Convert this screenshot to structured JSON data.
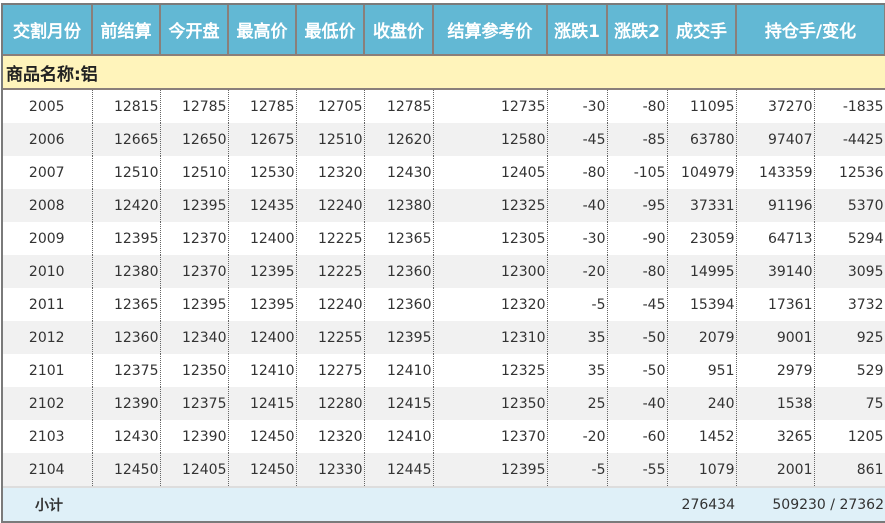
{
  "headers": [
    "交割月份",
    "前结算",
    "今开盘",
    "最高价",
    "最低价",
    "收盘价",
    "结算参考价",
    "涨跌1",
    "涨跌2",
    "成交手",
    "持仓手/变化"
  ],
  "category": "商品名称:铝",
  "rows": [
    [
      "2005",
      "12815",
      "12785",
      "12785",
      "12705",
      "12785",
      "12735",
      "-30",
      "-80",
      "11095",
      "37270",
      "-1835"
    ],
    [
      "2006",
      "12665",
      "12650",
      "12675",
      "12510",
      "12620",
      "12580",
      "-45",
      "-85",
      "63780",
      "97407",
      "-4425"
    ],
    [
      "2007",
      "12510",
      "12510",
      "12530",
      "12320",
      "12430",
      "12405",
      "-80",
      "-105",
      "104979",
      "143359",
      "12536"
    ],
    [
      "2008",
      "12420",
      "12395",
      "12435",
      "12240",
      "12380",
      "12325",
      "-40",
      "-95",
      "37331",
      "91196",
      "5370"
    ],
    [
      "2009",
      "12395",
      "12370",
      "12400",
      "12225",
      "12365",
      "12305",
      "-30",
      "-90",
      "23059",
      "64713",
      "5294"
    ],
    [
      "2010",
      "12380",
      "12370",
      "12395",
      "12225",
      "12360",
      "12300",
      "-20",
      "-80",
      "14995",
      "39140",
      "3095"
    ],
    [
      "2011",
      "12365",
      "12395",
      "12395",
      "12240",
      "12360",
      "12320",
      "-5",
      "-45",
      "15394",
      "17361",
      "3732"
    ],
    [
      "2012",
      "12360",
      "12340",
      "12400",
      "12255",
      "12395",
      "12310",
      "35",
      "-50",
      "2079",
      "9001",
      "925"
    ],
    [
      "2101",
      "12375",
      "12350",
      "12410",
      "12275",
      "12410",
      "12325",
      "35",
      "-50",
      "951",
      "2979",
      "529"
    ],
    [
      "2102",
      "12390",
      "12375",
      "12415",
      "12280",
      "12415",
      "12350",
      "25",
      "-40",
      "240",
      "1538",
      "75"
    ],
    [
      "2103",
      "12430",
      "12390",
      "12450",
      "12320",
      "12410",
      "12370",
      "-20",
      "-60",
      "1452",
      "3265",
      "1205"
    ],
    [
      "2104",
      "12450",
      "12405",
      "12450",
      "12330",
      "12445",
      "12395",
      "-5",
      "-55",
      "1079",
      "2001",
      "861"
    ]
  ],
  "footer": {
    "label": "小计",
    "volume": "276434",
    "open_interest": "509230 / 27362"
  },
  "colors": {
    "header": "#62b8d4",
    "category": "#fff4bb",
    "footer": "#dff0f8",
    "alt_row": "#f1f1f1"
  }
}
